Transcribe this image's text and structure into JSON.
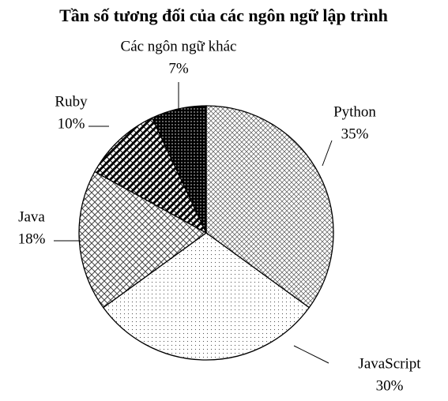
{
  "chart_data": {
    "type": "pie",
    "title": "Tần số tương đối của các ngôn ngữ lập trình",
    "categories": [
      "Python",
      "JavaScript",
      "Java",
      "Ruby",
      "Các ngôn ngữ khác"
    ],
    "values": [
      35,
      30,
      18,
      10,
      7
    ],
    "value_labels": [
      "35%",
      "30%",
      "18%",
      "10%",
      "7%"
    ]
  }
}
